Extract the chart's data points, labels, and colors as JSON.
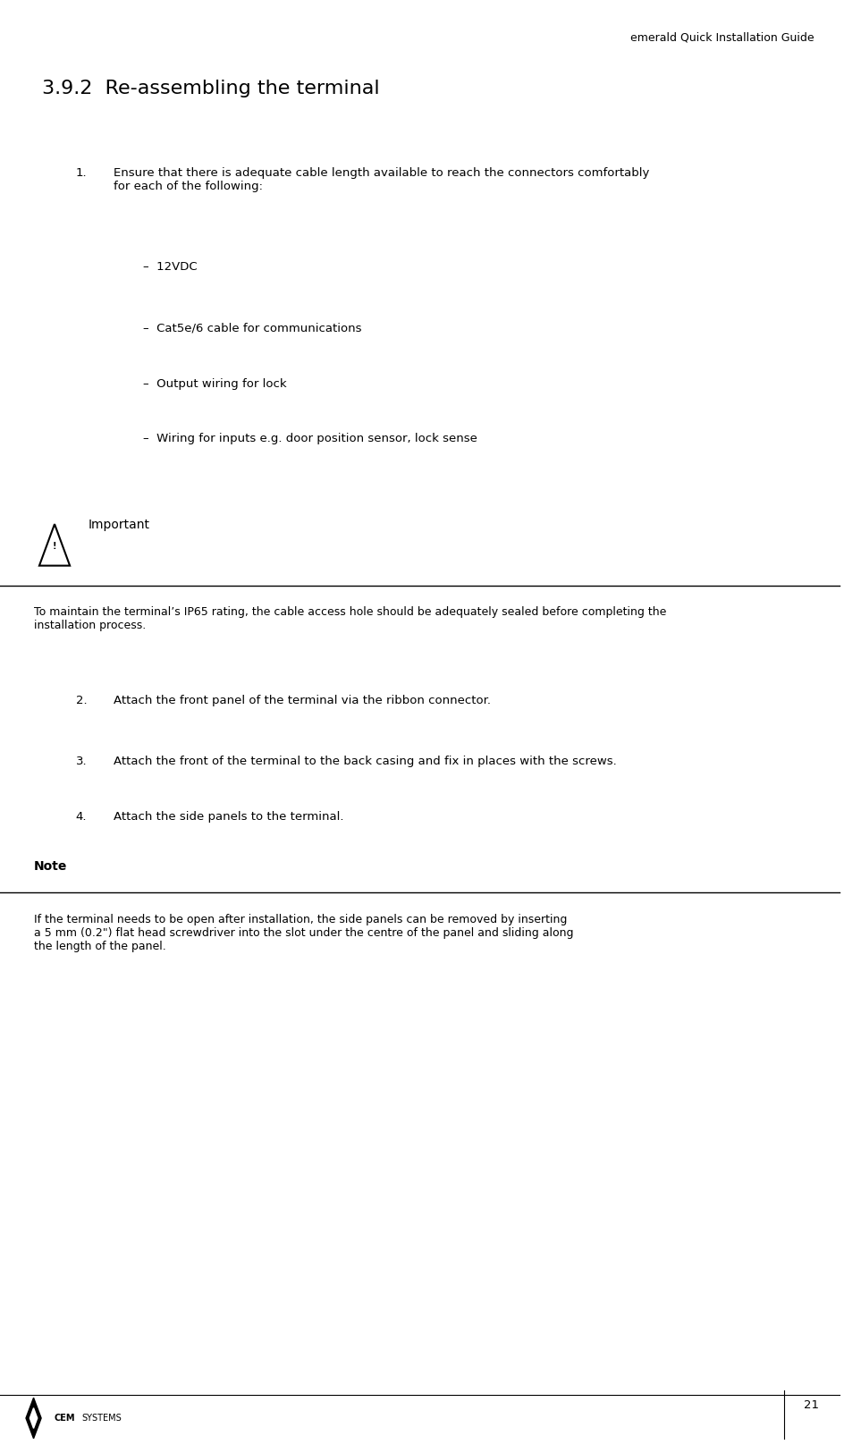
{
  "page_width": 9.44,
  "page_height": 16.25,
  "bg_color": "#ffffff",
  "header_text": "emerald Quick Installation Guide",
  "header_font_size": 9,
  "header_color": "#000000",
  "section_title": "3.9.2  Re-assembling the terminal",
  "section_title_font_size": 16,
  "step1_text": "Ensure that there is adequate cable length available to reach the connectors comfortably\nfor each of the following:",
  "step1_num": "1.",
  "bullets": [
    "–  12VDC",
    "–  Cat5e/6 cable for communications",
    "–  Output wiring for lock",
    "–  Wiring for inputs e.g. door position sensor, lock sense"
  ],
  "important_label": "Important",
  "important_body": "To maintain the terminal’s IP65 rating, the cable access hole should be adequately sealed before completing the\ninstallation process.",
  "steps_2_4": [
    {
      "num": "2.",
      "text": "Attach the front panel of the terminal via the ribbon connector."
    },
    {
      "num": "3.",
      "text": "Attach the front of the terminal to the back casing and fix in places with the screws."
    },
    {
      "num": "4.",
      "text": "Attach the side panels to the terminal."
    }
  ],
  "note_label": "Note",
  "note_body": "If the terminal needs to be open after installation, the side panels can be removed by inserting\na 5 mm (0.2\") flat head screwdriver into the slot under the centre of the panel and sliding along\nthe length of the panel.",
  "footer_page_num": "21",
  "body_font_size": 9.5,
  "label_font_size": 10,
  "line_color": "#000000"
}
